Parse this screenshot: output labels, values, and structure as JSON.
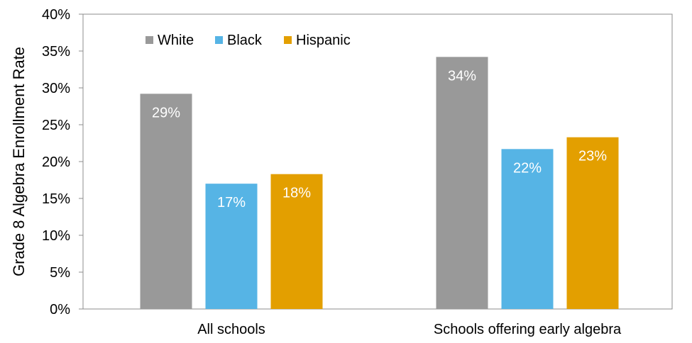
{
  "chart_data": {
    "type": "bar",
    "title": "",
    "xlabel": "",
    "ylabel": "Grade 8 Algebra Enrollment Rate",
    "categories": [
      "All schools",
      "Schools offering early algebra"
    ],
    "series": [
      {
        "name": "White",
        "color": "#999999",
        "values": [
          29.2,
          34.2
        ],
        "labels": [
          "29%",
          "34%"
        ]
      },
      {
        "name": "Black",
        "color": "#56b4e5",
        "values": [
          17.0,
          21.7
        ],
        "labels": [
          "17%",
          "22%"
        ]
      },
      {
        "name": "Hispanic",
        "color": "#e39f00",
        "values": [
          18.3,
          23.3
        ],
        "labels": [
          "18%",
          "23%"
        ]
      }
    ],
    "ylim": [
      0,
      40
    ],
    "yticks": [
      0,
      5,
      10,
      15,
      20,
      25,
      30,
      35,
      40
    ],
    "ytick_labels": [
      "0%",
      "5%",
      "10%",
      "15%",
      "20%",
      "25%",
      "30%",
      "35%",
      "40%"
    ],
    "grid": false,
    "legend_position": "top-left",
    "data_label_color": "#ffffff"
  }
}
